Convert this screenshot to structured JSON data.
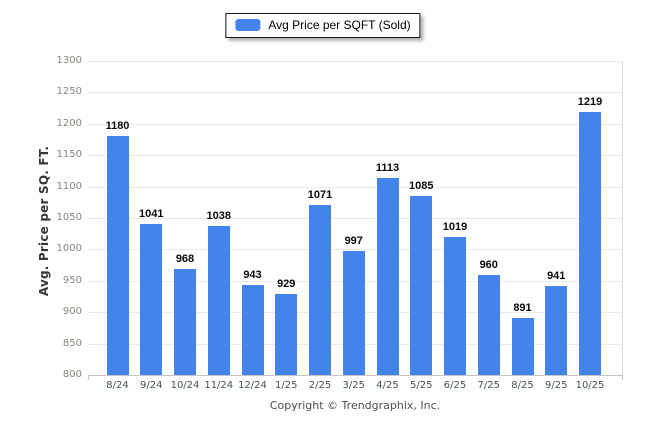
{
  "legend": {
    "label": "Avg Price per SQFT (Sold)",
    "swatch_color": "#4283ec"
  },
  "chart_data": {
    "type": "bar",
    "title": "",
    "categories": [
      "8/24",
      "9/24",
      "10/24",
      "11/24",
      "12/24",
      "1/25",
      "2/25",
      "3/25",
      "4/25",
      "5/25",
      "6/25",
      "7/25",
      "8/25",
      "9/25",
      "10/25"
    ],
    "values": [
      1180,
      1041,
      968,
      1038,
      943,
      929,
      1071,
      997,
      1113,
      1085,
      1019,
      960,
      891,
      941,
      1219
    ],
    "series": [
      {
        "name": "Avg Price per SQFT (Sold)",
        "values": [
          1180,
          1041,
          968,
          1038,
          943,
          929,
          1071,
          997,
          1113,
          1085,
          1019,
          960,
          891,
          941,
          1219
        ]
      }
    ],
    "xlabel": "",
    "ylabel": "Avg. Price per SQ. FT.",
    "ylim": [
      800,
      1300
    ],
    "ytick_step": 50,
    "ytick_labels": [
      "800",
      "850",
      "900",
      "950",
      "1000",
      "1050",
      "1100",
      "1150",
      "1200",
      "1250",
      "1300"
    ],
    "grid": true,
    "legend_position": "top-center",
    "bar_color": "#4283ec",
    "data_label_color": "#0a0a0a"
  },
  "footer": {
    "copyright": "Copyright © Trendgraphix, Inc."
  }
}
